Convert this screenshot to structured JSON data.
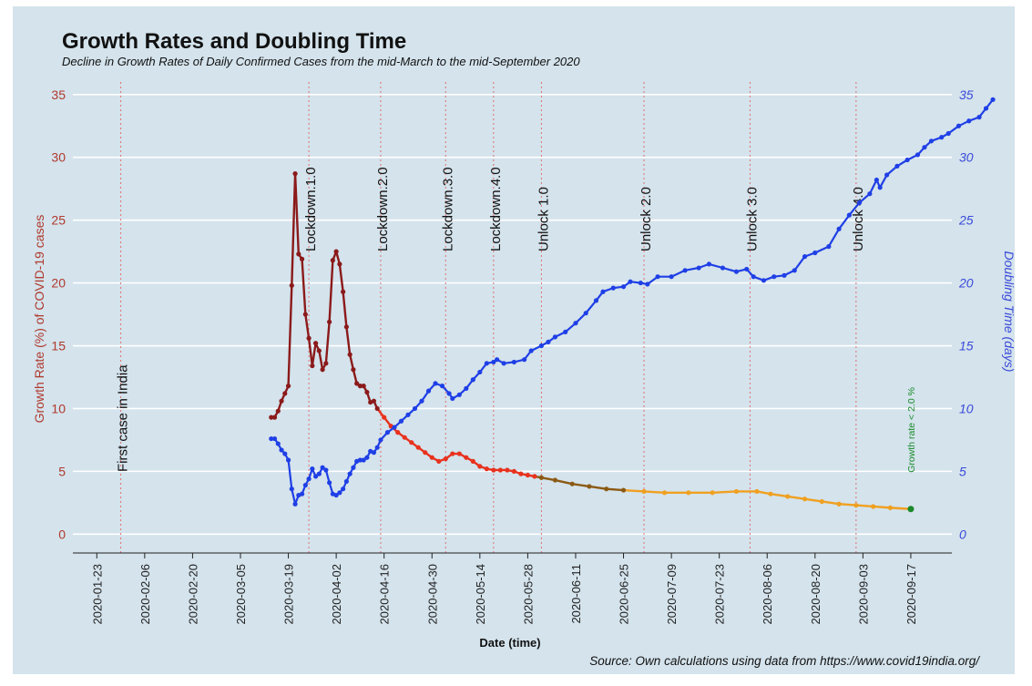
{
  "title": "Growth Rates and Doubling Time",
  "subtitle": "Decline in Growth Rates of Daily Confirmed Cases from the mid-March to the mid-September 2020",
  "source": "Source: Own calculations using data from https://www.covid19india.org/",
  "colors": {
    "background": "#d4e3ec",
    "growth_high": "#8b1a1a",
    "growth_mid": "#e8321e",
    "growth_transition": "#8b5a14",
    "growth_low": "#f0a020",
    "doubling": "#1f3fe6",
    "event_line": "#e07070",
    "threshold_marker": "#1a8a2a",
    "left_axis": "#b03a2e",
    "right_axis": "#3a4ad8"
  },
  "chart_data": {
    "type": "line",
    "xlabel": "Date (time)",
    "ylabel_left": "Growth Rate (%) of COVID-19 cases",
    "ylabel_right": "Doubling Time (days)",
    "xlim": [
      "2020-01-16",
      "2020-09-29"
    ],
    "ylim_left": [
      -1.5,
      36
    ],
    "ylim_right": [
      -1.5,
      36
    ],
    "x_ticks": [
      "2020-01-23",
      "2020-02-06",
      "2020-02-20",
      "2020-03-05",
      "2020-03-19",
      "2020-04-02",
      "2020-04-16",
      "2020-04-30",
      "2020-05-14",
      "2020-05-28",
      "2020-06-11",
      "2020-06-25",
      "2020-07-09",
      "2020-07-23",
      "2020-08-06",
      "2020-08-20",
      "2020-09-03",
      "2020-09-17"
    ],
    "y_ticks_left": [
      0,
      5,
      10,
      15,
      20,
      25,
      30,
      35
    ],
    "y_ticks_right": [
      0,
      5,
      10,
      15,
      20,
      25,
      30,
      35
    ],
    "grid": "horizontal",
    "events": [
      {
        "date": "2020-01-30",
        "label": "First case in India"
      },
      {
        "date": "2020-03-25",
        "label": "Lockdown.1.0"
      },
      {
        "date": "2020-04-15",
        "label": "Lockdown.2.0"
      },
      {
        "date": "2020-05-04",
        "label": "Lockdown.3.0"
      },
      {
        "date": "2020-05-18",
        "label": "Lockdown.4.0"
      },
      {
        "date": "2020-06-01",
        "label": "Unlock 1.0"
      },
      {
        "date": "2020-07-01",
        "label": "Unlock 2.0"
      },
      {
        "date": "2020-08-01",
        "label": "Unlock 3.0"
      },
      {
        "date": "2020-09-01",
        "label": "Unlock 4.0"
      }
    ],
    "annotation": {
      "date": "2020-09-17",
      "value": 2.0,
      "label": "Growth rate < 2.0 %"
    },
    "series": [
      {
        "axis": "left",
        "points": [
          [
            "2020-03-14",
            9.3
          ],
          [
            "2020-03-15",
            9.3
          ],
          [
            "2020-03-16",
            9.8
          ],
          [
            "2020-03-17",
            10.6
          ],
          [
            "2020-03-18",
            11.2
          ],
          [
            "2020-03-19",
            11.8
          ],
          [
            "2020-03-20",
            19.8
          ],
          [
            "2020-03-21",
            28.7
          ],
          [
            "2020-03-22",
            22.3
          ],
          [
            "2020-03-23",
            21.9
          ],
          [
            "2020-03-24",
            17.5
          ],
          [
            "2020-03-25",
            15.6
          ],
          [
            "2020-03-26",
            13.4
          ],
          [
            "2020-03-27",
            15.2
          ],
          [
            "2020-03-28",
            14.6
          ],
          [
            "2020-03-29",
            13.1
          ],
          [
            "2020-03-30",
            13.6
          ],
          [
            "2020-03-31",
            16.9
          ],
          [
            "2020-04-01",
            21.8
          ],
          [
            "2020-04-02",
            22.5
          ],
          [
            "2020-04-03",
            21.5
          ],
          [
            "2020-04-04",
            19.3
          ],
          [
            "2020-04-05",
            16.5
          ],
          [
            "2020-04-06",
            14.3
          ],
          [
            "2020-04-07",
            13.1
          ],
          [
            "2020-04-08",
            12.0
          ],
          [
            "2020-04-09",
            11.8
          ],
          [
            "2020-04-10",
            11.8
          ],
          [
            "2020-04-11",
            11.3
          ],
          [
            "2020-04-12",
            10.5
          ],
          [
            "2020-04-13",
            10.6
          ],
          [
            "2020-04-14",
            10.0
          ],
          [
            "2020-04-16",
            9.3
          ],
          [
            "2020-04-18",
            8.6
          ],
          [
            "2020-04-20",
            8.1
          ],
          [
            "2020-04-22",
            7.7
          ],
          [
            "2020-04-24",
            7.3
          ],
          [
            "2020-04-26",
            6.9
          ],
          [
            "2020-04-28",
            6.5
          ],
          [
            "2020-04-30",
            6.1
          ],
          [
            "2020-05-02",
            5.8
          ],
          [
            "2020-05-04",
            6.0
          ],
          [
            "2020-05-06",
            6.4
          ],
          [
            "2020-05-08",
            6.4
          ],
          [
            "2020-05-10",
            6.1
          ],
          [
            "2020-05-12",
            5.8
          ],
          [
            "2020-05-14",
            5.4
          ],
          [
            "2020-05-16",
            5.2
          ],
          [
            "2020-05-18",
            5.1
          ],
          [
            "2020-05-20",
            5.1
          ],
          [
            "2020-05-22",
            5.1
          ],
          [
            "2020-05-24",
            5.0
          ],
          [
            "2020-05-26",
            4.8
          ],
          [
            "2020-05-28",
            4.7
          ],
          [
            "2020-05-30",
            4.6
          ],
          [
            "2020-06-01",
            4.5
          ],
          [
            "2020-06-05",
            4.3
          ],
          [
            "2020-06-10",
            4.0
          ],
          [
            "2020-06-15",
            3.8
          ],
          [
            "2020-06-20",
            3.6
          ],
          [
            "2020-06-25",
            3.5
          ],
          [
            "2020-07-01",
            3.4
          ],
          [
            "2020-07-07",
            3.3
          ],
          [
            "2020-07-14",
            3.3
          ],
          [
            "2020-07-21",
            3.3
          ],
          [
            "2020-07-28",
            3.4
          ],
          [
            "2020-08-03",
            3.4
          ],
          [
            "2020-08-07",
            3.2
          ],
          [
            "2020-08-12",
            3.0
          ],
          [
            "2020-08-17",
            2.8
          ],
          [
            "2020-08-22",
            2.6
          ],
          [
            "2020-08-27",
            2.4
          ],
          [
            "2020-09-01",
            2.3
          ],
          [
            "2020-09-06",
            2.2
          ],
          [
            "2020-09-11",
            2.1
          ],
          [
            "2020-09-17",
            2.0
          ]
        ]
      },
      {
        "axis": "right",
        "points": [
          [
            "2020-03-14",
            7.6
          ],
          [
            "2020-03-15",
            7.6
          ],
          [
            "2020-03-16",
            7.2
          ],
          [
            "2020-03-17",
            6.7
          ],
          [
            "2020-03-18",
            6.4
          ],
          [
            "2020-03-19",
            5.9
          ],
          [
            "2020-03-20",
            3.6
          ],
          [
            "2020-03-21",
            2.4
          ],
          [
            "2020-03-22",
            3.1
          ],
          [
            "2020-03-23",
            3.2
          ],
          [
            "2020-03-24",
            3.9
          ],
          [
            "2020-03-25",
            4.4
          ],
          [
            "2020-03-26",
            5.2
          ],
          [
            "2020-03-27",
            4.6
          ],
          [
            "2020-03-28",
            4.8
          ],
          [
            "2020-03-29",
            5.3
          ],
          [
            "2020-03-30",
            5.1
          ],
          [
            "2020-03-31",
            4.1
          ],
          [
            "2020-04-01",
            3.2
          ],
          [
            "2020-04-02",
            3.1
          ],
          [
            "2020-04-03",
            3.3
          ],
          [
            "2020-04-04",
            3.6
          ],
          [
            "2020-04-05",
            4.2
          ],
          [
            "2020-04-06",
            4.8
          ],
          [
            "2020-04-07",
            5.3
          ],
          [
            "2020-04-08",
            5.8
          ],
          [
            "2020-04-09",
            5.9
          ],
          [
            "2020-04-10",
            5.9
          ],
          [
            "2020-04-11",
            6.1
          ],
          [
            "2020-04-12",
            6.6
          ],
          [
            "2020-04-13",
            6.5
          ],
          [
            "2020-04-14",
            6.9
          ],
          [
            "2020-04-15",
            7.5
          ],
          [
            "2020-04-17",
            8.1
          ],
          [
            "2020-04-19",
            8.5
          ],
          [
            "2020-04-21",
            9.0
          ],
          [
            "2020-04-23",
            9.5
          ],
          [
            "2020-04-25",
            10.0
          ],
          [
            "2020-04-27",
            10.6
          ],
          [
            "2020-04-29",
            11.4
          ],
          [
            "2020-05-01",
            12.0
          ],
          [
            "2020-05-03",
            11.8
          ],
          [
            "2020-05-05",
            11.2
          ],
          [
            "2020-05-06",
            10.8
          ],
          [
            "2020-05-08",
            11.1
          ],
          [
            "2020-05-10",
            11.6
          ],
          [
            "2020-05-12",
            12.3
          ],
          [
            "2020-05-14",
            12.9
          ],
          [
            "2020-05-16",
            13.6
          ],
          [
            "2020-05-18",
            13.7
          ],
          [
            "2020-05-19",
            13.9
          ],
          [
            "2020-05-21",
            13.6
          ],
          [
            "2020-05-24",
            13.7
          ],
          [
            "2020-05-27",
            13.9
          ],
          [
            "2020-05-29",
            14.6
          ],
          [
            "2020-06-01",
            15.0
          ],
          [
            "2020-06-03",
            15.3
          ],
          [
            "2020-06-05",
            15.7
          ],
          [
            "2020-06-08",
            16.1
          ],
          [
            "2020-06-11",
            16.8
          ],
          [
            "2020-06-14",
            17.6
          ],
          [
            "2020-06-17",
            18.6
          ],
          [
            "2020-06-19",
            19.3
          ],
          [
            "2020-06-22",
            19.6
          ],
          [
            "2020-06-25",
            19.7
          ],
          [
            "2020-06-27",
            20.1
          ],
          [
            "2020-06-30",
            20.0
          ],
          [
            "2020-07-02",
            19.9
          ],
          [
            "2020-07-05",
            20.5
          ],
          [
            "2020-07-09",
            20.5
          ],
          [
            "2020-07-13",
            21.0
          ],
          [
            "2020-07-17",
            21.2
          ],
          [
            "2020-07-20",
            21.5
          ],
          [
            "2020-07-24",
            21.2
          ],
          [
            "2020-07-28",
            20.9
          ],
          [
            "2020-07-31",
            21.1
          ],
          [
            "2020-08-02",
            20.5
          ],
          [
            "2020-08-05",
            20.2
          ],
          [
            "2020-08-08",
            20.5
          ],
          [
            "2020-08-11",
            20.6
          ],
          [
            "2020-08-14",
            21.0
          ],
          [
            "2020-08-17",
            22.1
          ],
          [
            "2020-08-20",
            22.4
          ],
          [
            "2020-08-24",
            22.9
          ],
          [
            "2020-08-27",
            24.3
          ],
          [
            "2020-08-30",
            25.4
          ],
          [
            "2020-09-02",
            26.4
          ],
          [
            "2020-09-05",
            27.1
          ],
          [
            "2020-09-07",
            28.2
          ],
          [
            "2020-09-08",
            27.6
          ],
          [
            "2020-09-10",
            28.6
          ],
          [
            "2020-09-13",
            29.3
          ],
          [
            "2020-09-16",
            29.8
          ],
          [
            "2020-09-19",
            30.2
          ],
          [
            "2020-09-21",
            30.8
          ],
          [
            "2020-09-23",
            31.3
          ],
          [
            "2020-09-26",
            31.6
          ],
          [
            "2020-09-28",
            31.9
          ],
          [
            "2020-10-01",
            32.5
          ],
          [
            "2020-10-04",
            32.9
          ],
          [
            "2020-10-07",
            33.2
          ],
          [
            "2020-10-09",
            33.9
          ],
          [
            "2020-10-11",
            34.6
          ]
        ]
      }
    ]
  }
}
